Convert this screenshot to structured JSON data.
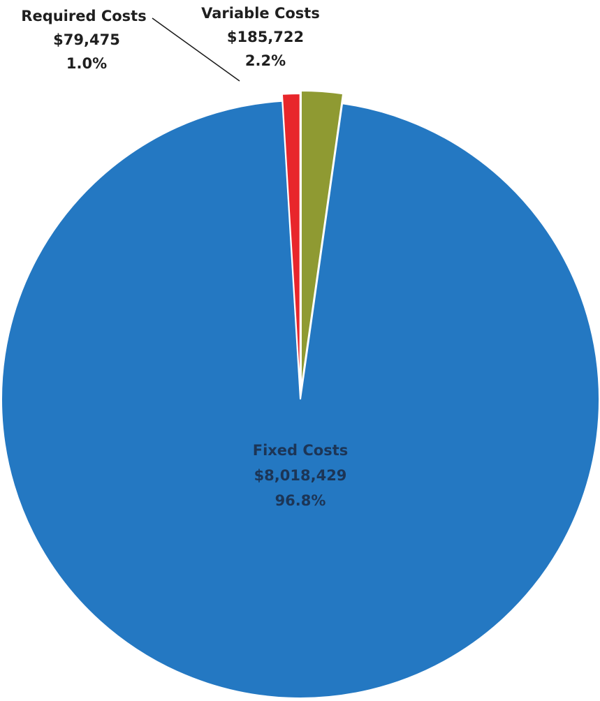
{
  "chart_data": {
    "type": "pie",
    "title": "",
    "slices": [
      {
        "name": "Variable Costs",
        "value": 185722,
        "value_label": "$185,722",
        "percent_label": "2.2%",
        "color": "#8f9a32"
      },
      {
        "name": "Fixed Costs",
        "value": 8018429,
        "value_label": "$8,018,429",
        "percent_label": "96.8%",
        "color": "#2478c2"
      },
      {
        "name": "Required Costs",
        "value": 79475,
        "value_label": "$79,475",
        "percent_label": "1.0%",
        "color": "#e8262b"
      }
    ],
    "start_angle": "12 o'clock",
    "direction": "clockwise",
    "legend": "none",
    "exploded_slices": [
      "Variable Costs",
      "Required Costs"
    ]
  }
}
